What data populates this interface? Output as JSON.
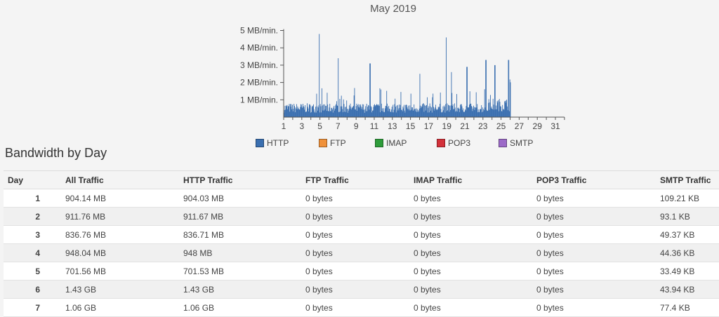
{
  "chart_data": {
    "type": "bar",
    "title": "May 2019",
    "y_unit": "MB/min.",
    "ylim": [
      0,
      5
    ],
    "y_ticks": [
      "1 MB/min.",
      "2 MB/min.",
      "3 MB/min.",
      "4 MB/min.",
      "5 MB/min."
    ],
    "x_ticks": [
      "1",
      "3",
      "5",
      "7",
      "9",
      "11",
      "13",
      "15",
      "17",
      "19",
      "21",
      "23",
      "25",
      "27",
      "29",
      "31"
    ],
    "xlim": [
      1,
      32
    ],
    "series": [
      {
        "name": "HTTP",
        "color": "#3a6fb0",
        "days": [
          1,
          26
        ],
        "data_points": "one value per minute over 25 days; visible peaks noted below"
      }
    ],
    "peaks": [
      {
        "day": 4.9,
        "value": 4.8
      },
      {
        "day": 18.9,
        "value": 4.6
      },
      {
        "day": 7.0,
        "value": 3.4
      },
      {
        "day": 23.3,
        "value": 3.3
      },
      {
        "day": 25.8,
        "value": 3.3
      },
      {
        "day": 10.5,
        "value": 3.1
      },
      {
        "day": 24.3,
        "value": 3.0
      },
      {
        "day": 21.2,
        "value": 2.9
      },
      {
        "day": 16.0,
        "value": 2.5
      },
      {
        "day": 19.5,
        "value": 2.6
      }
    ],
    "grid": false,
    "legend_position": "bottom"
  },
  "legend": [
    {
      "label": "HTTP",
      "color": "#3a6fb0"
    },
    {
      "label": "FTP",
      "color": "#f0913a"
    },
    {
      "label": "IMAP",
      "color": "#2e9c3a"
    },
    {
      "label": "POP3",
      "color": "#d3313a"
    },
    {
      "label": "SMTP",
      "color": "#9c6ac8"
    }
  ],
  "section_title": "Bandwidth by Day",
  "table": {
    "headers": [
      "Day",
      "All Traffic",
      "HTTP Traffic",
      "FTP Traffic",
      "IMAP Traffic",
      "POP3 Traffic",
      "SMTP Traffic"
    ],
    "rows": [
      [
        "1",
        "904.14 MB",
        "904.03 MB",
        "0 bytes",
        "0 bytes",
        "0 bytes",
        "109.21 KB"
      ],
      [
        "2",
        "911.76 MB",
        "911.67 MB",
        "0 bytes",
        "0 bytes",
        "0 bytes",
        "93.1 KB"
      ],
      [
        "3",
        "836.76 MB",
        "836.71 MB",
        "0 bytes",
        "0 bytes",
        "0 bytes",
        "49.37 KB"
      ],
      [
        "4",
        "948.04 MB",
        "948 MB",
        "0 bytes",
        "0 bytes",
        "0 bytes",
        "44.36 KB"
      ],
      [
        "5",
        "701.56 MB",
        "701.53 MB",
        "0 bytes",
        "0 bytes",
        "0 bytes",
        "33.49 KB"
      ],
      [
        "6",
        "1.43 GB",
        "1.43 GB",
        "0 bytes",
        "0 bytes",
        "0 bytes",
        "43.94 KB"
      ],
      [
        "7",
        "1.06 GB",
        "1.06 GB",
        "0 bytes",
        "0 bytes",
        "0 bytes",
        "77.4 KB"
      ]
    ]
  }
}
